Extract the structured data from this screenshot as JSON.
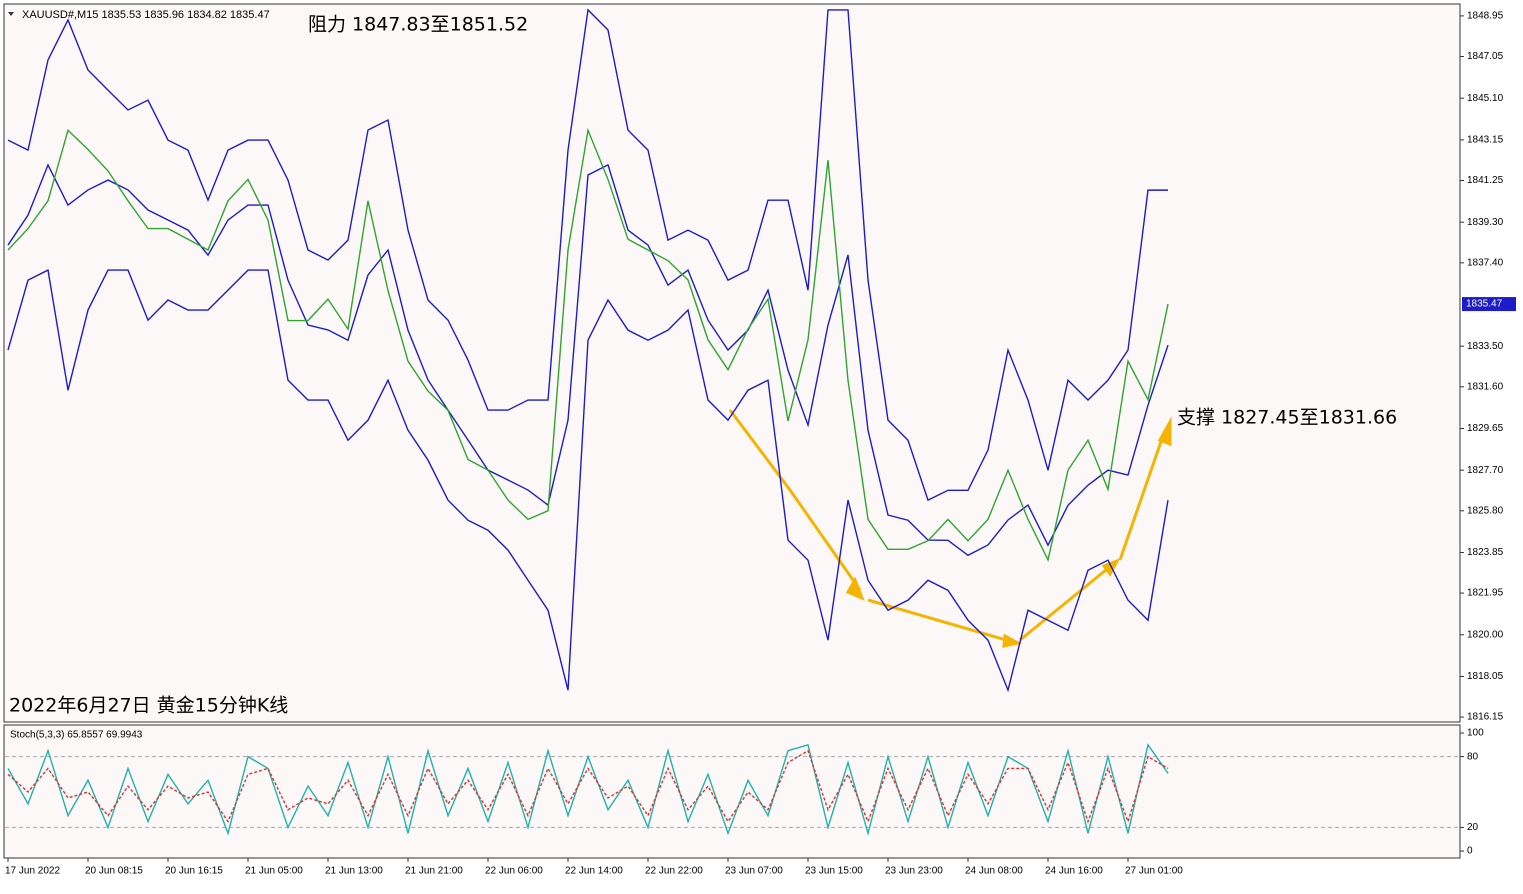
{
  "chart_data": [
    {
      "type": "line",
      "title": "XAUUSD#,M15  1835.53 1835.96 1834.82 1835.47",
      "annotations": [
        "阻力 1847.83至1851.52",
        "支撑 1827.45至1831.66",
        "2022年6月27日 黄金15分钟K线"
      ],
      "categories": [
        "17 Jun 2022",
        null,
        null,
        null,
        "20 Jun 08:15",
        null,
        null,
        null,
        "20 Jun 16:15",
        null,
        null,
        null,
        "21 Jun 05:00",
        null,
        null,
        null,
        "21 Jun 13:00",
        null,
        null,
        null,
        "21 Jun 21:00",
        null,
        null,
        null,
        "22 Jun 06:00",
        null,
        null,
        null,
        "22 Jun 14:00",
        null,
        null,
        null,
        "22 Jun 22:00",
        null,
        null,
        null,
        "23 Jun 07:00",
        null,
        null,
        null,
        "23 Jun 15:00",
        null,
        null,
        null,
        "23 Jun 23:00",
        null,
        null,
        null,
        "24 Jun 08:00",
        null,
        null,
        null,
        "24 Jun 16:00",
        null,
        null,
        null,
        "27 Jun 01:00",
        null,
        null
      ],
      "series": [
        {
          "color": "#1c1cc8",
          "values": [
            1843.14,
            1842.67,
            1846.89,
            1848.76,
            1846.42,
            1845.48,
            1844.55,
            1845.01,
            1843.14,
            1842.67,
            1840.33,
            1842.67,
            1843.14,
            1843.14,
            1841.27,
            1838.0,
            1837.53,
            1838.46,
            1843.61,
            1844.08,
            1838.93,
            1835.66,
            1834.72,
            1832.85,
            1830.51,
            1830.51,
            1830.98,
            1830.98,
            1842.67,
            1849.23,
            1848.29,
            1843.61,
            1842.67,
            1838.46,
            1838.93,
            1838.46,
            1836.59,
            1837.06,
            1840.33,
            1840.33,
            1836.12,
            1849.23,
            1849.23,
            1836.59,
            1830.04,
            1829.1,
            1826.3,
            1826.76,
            1826.76,
            1828.64,
            1833.32,
            1830.98,
            1827.7,
            1831.91,
            1830.98,
            1831.91,
            1833.32,
            1840.8,
            1840.8
          ]
        },
        {
          "color": "#1c1cc8",
          "values": [
            1838.23,
            1839.63,
            1841.98,
            1840.1,
            1840.81,
            1841.27,
            1840.81,
            1839.87,
            1839.4,
            1838.93,
            1837.76,
            1839.4,
            1840.1,
            1840.1,
            1836.59,
            1834.49,
            1834.26,
            1833.78,
            1836.83,
            1838.0,
            1834.25,
            1831.92,
            1830.51,
            1829.11,
            1827.7,
            1827.24,
            1826.77,
            1826.07,
            1830.04,
            1841.51,
            1841.98,
            1838.93,
            1838.23,
            1836.36,
            1837.06,
            1834.72,
            1833.32,
            1834.25,
            1836.12,
            1832.38,
            1829.81,
            1834.49,
            1837.77,
            1829.57,
            1825.6,
            1825.36,
            1824.43,
            1824.42,
            1823.72,
            1824.2,
            1825.37,
            1826.07,
            1824.19,
            1826.06,
            1827.0,
            1827.7,
            1827.47,
            1830.74,
            1833.55
          ]
        },
        {
          "color": "#1c1cc8",
          "values": [
            1833.32,
            1836.59,
            1837.06,
            1831.44,
            1835.19,
            1837.06,
            1837.06,
            1834.72,
            1835.66,
            1835.19,
            1835.19,
            1836.12,
            1837.06,
            1837.06,
            1831.91,
            1830.98,
            1830.98,
            1829.1,
            1830.04,
            1831.91,
            1829.57,
            1828.17,
            1826.3,
            1825.36,
            1824.89,
            1823.96,
            1822.55,
            1821.15,
            1817.41,
            1833.78,
            1835.66,
            1834.25,
            1833.78,
            1834.25,
            1835.19,
            1830.98,
            1830.04,
            1831.44,
            1831.91,
            1824.43,
            1823.49,
            1819.75,
            1826.3,
            1822.55,
            1821.15,
            1821.62,
            1822.55,
            1822.08,
            1820.68,
            1819.75,
            1817.41,
            1821.15,
            1820.68,
            1820.21,
            1823.02,
            1823.49,
            1821.62,
            1820.68,
            1826.3
          ]
        },
        {
          "color": "#2fa52f",
          "values": [
            1838.0,
            1839.0,
            1840.3,
            1843.6,
            1842.7,
            1841.7,
            1840.3,
            1839.0,
            1839.0,
            1838.5,
            1838.0,
            1840.3,
            1841.3,
            1839.4,
            1834.7,
            1834.7,
            1835.7,
            1834.3,
            1840.3,
            1836.1,
            1832.8,
            1831.4,
            1830.5,
            1828.2,
            1827.7,
            1826.3,
            1825.4,
            1825.8,
            1838.0,
            1843.6,
            1841.3,
            1838.5,
            1838.0,
            1837.5,
            1836.6,
            1833.8,
            1832.4,
            1834.3,
            1835.7,
            1830.0,
            1833.8,
            1842.2,
            1831.9,
            1825.4,
            1824.0,
            1824.0,
            1824.4,
            1825.4,
            1824.4,
            1825.4,
            1827.7,
            1825.4,
            1823.5,
            1827.7,
            1829.1,
            1826.8,
            1832.8,
            1831.0,
            1835.47
          ]
        }
      ],
      "last_price": 1835.47,
      "ylim": [
        1815.92,
        1849.46
      ],
      "yticks": [
        1848.95,
        1847.05,
        {
          "value": 1845.1,
          "label": "1845.10"
        },
        1843.15,
        1841.25,
        {
          "value": 1839.3,
          "label": "1839.30"
        },
        {
          "value": 1837.4,
          "label": "1837.40"
        },
        {
          "value": 1833.5,
          "label": "1833.50"
        },
        {
          "value": 1831.6,
          "label": "1831.60"
        },
        1829.65,
        {
          "value": 1827.7,
          "label": "1827.70"
        },
        {
          "value": 1825.8,
          "label": "1825.80"
        },
        1823.85,
        1821.95,
        {
          "value": 1820.0,
          "label": "1820.00"
        },
        1818.05,
        1816.15
      ]
    },
    {
      "type": "line",
      "title": "Stoch(5,3,3) 65.8557 69.9943",
      "series": [
        {
          "color": "#20b2aa",
          "values": [
            70,
            40,
            85,
            30,
            60,
            20,
            70,
            25,
            65,
            40,
            60,
            15,
            80,
            70,
            20,
            55,
            30,
            75,
            20,
            80,
            15,
            85,
            30,
            70,
            25,
            75,
            20,
            85,
            30,
            80,
            35,
            60,
            20,
            85,
            25,
            65,
            15,
            60,
            30,
            85,
            90,
            20,
            75,
            15,
            80,
            25,
            80,
            20,
            75,
            30,
            80,
            70,
            25,
            85,
            15,
            80,
            15,
            90,
            65.8557
          ]
        },
        {
          "color": "#e03030",
          "dashed": true,
          "values": [
            65,
            50,
            70,
            45,
            50,
            30,
            55,
            35,
            55,
            45,
            50,
            25,
            65,
            70,
            35,
            45,
            40,
            60,
            30,
            65,
            30,
            70,
            40,
            60,
            35,
            65,
            30,
            70,
            40,
            70,
            45,
            55,
            30,
            70,
            35,
            55,
            25,
            50,
            35,
            75,
            85,
            35,
            65,
            25,
            70,
            35,
            70,
            30,
            65,
            40,
            70,
            70,
            35,
            75,
            25,
            70,
            25,
            80,
            69.9943
          ]
        }
      ],
      "ylim": [
        -5.9,
        106.8
      ],
      "yticks": [
        0,
        20,
        80,
        100
      ]
    }
  ]
}
